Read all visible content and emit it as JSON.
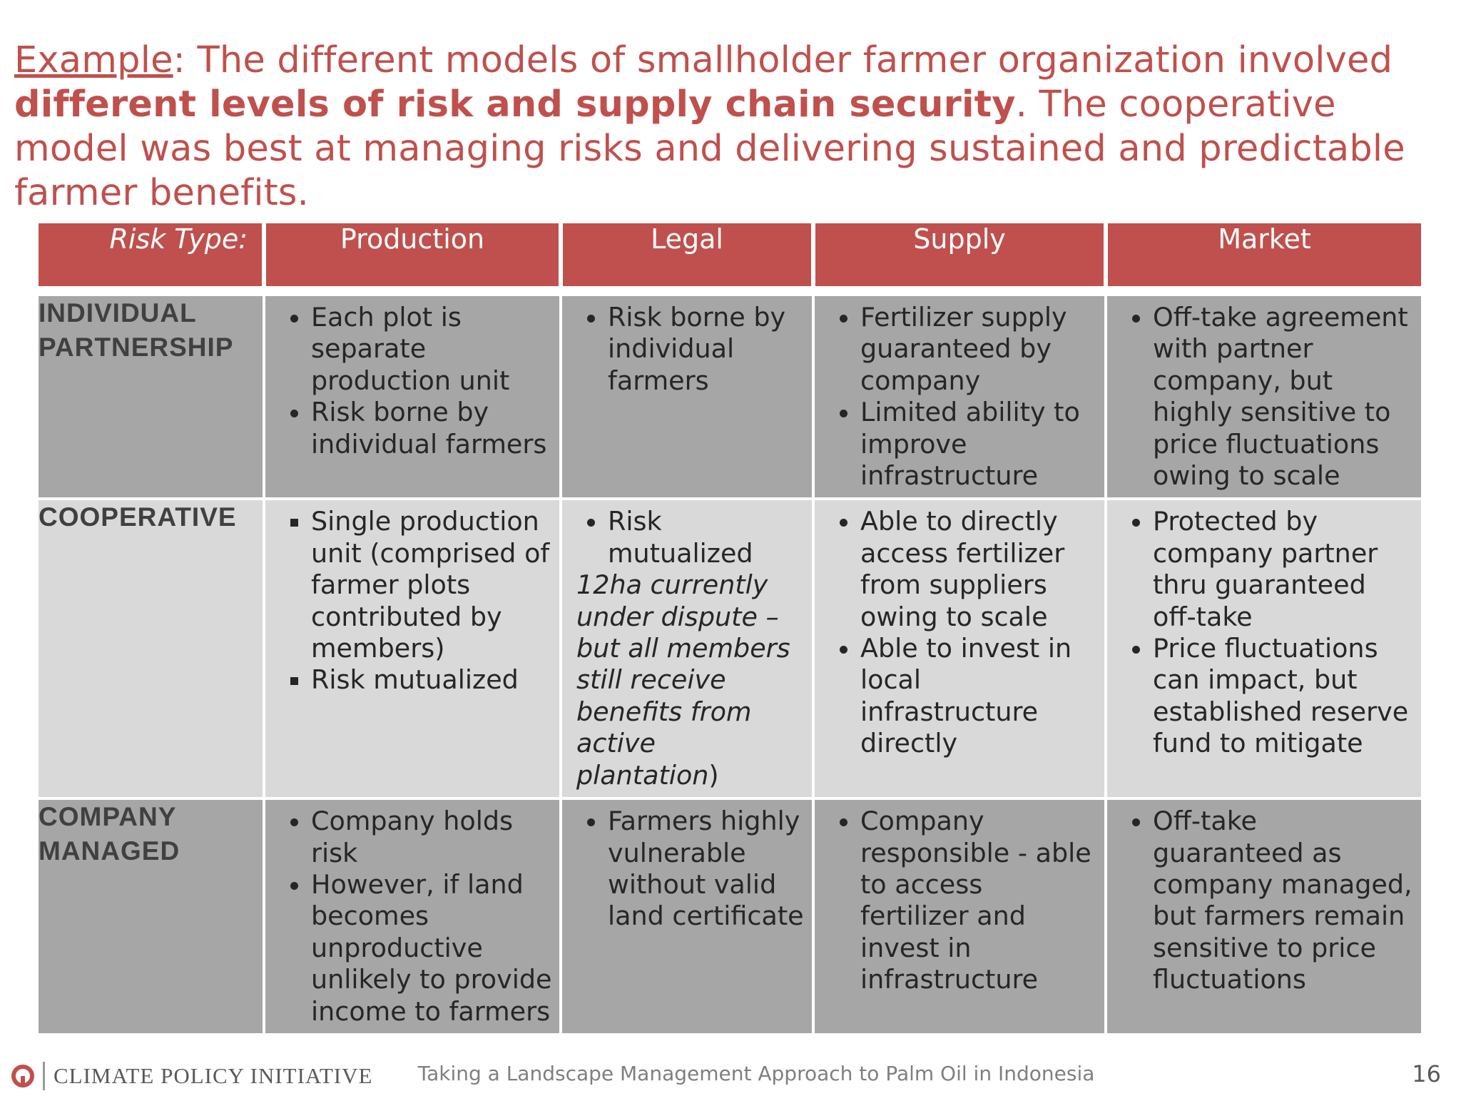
{
  "title": {
    "example": "Example",
    "part1": ": The different models of smallholder farmer organization involved ",
    "bold": "different levels of risk and supply chain security",
    "part2": ". The cooperative model was best at managing risks and delivering sustained and predictable farmer benefits."
  },
  "table": {
    "header": {
      "label": "Risk Type:",
      "columns": [
        "Production",
        "Legal",
        "Supply",
        "Market"
      ]
    },
    "rows": [
      {
        "model": "INDIVIDUAL PARTNERSHIP",
        "production": [
          "Each plot is separate production unit",
          "Risk borne by individual farmers"
        ],
        "legal": [
          "Risk borne by individual farmers"
        ],
        "supply": [
          "Fertilizer supply guaranteed by company",
          "Limited ability to improve infrastructure"
        ],
        "market": [
          "Off-take agreement with partner company, but highly sensitive to price fluctuations owing to scale"
        ]
      },
      {
        "model": "COOPERATIVE",
        "production": [
          "Single production unit (comprised of farmer plots contributed by members)",
          "Risk mutualized"
        ],
        "legal_bullet": "Risk mutualized",
        "legal_italic": "12ha currently under dispute – but all members still receive benefits from active plantation",
        "legal_close": ")",
        "supply": [
          "Able to directly access fertilizer from suppliers owing to scale",
          "Able to invest in local infrastructure directly"
        ],
        "market": [
          "Protected by company partner thru guaranteed off-take",
          "Price fluctuations can impact, but established reserve fund to mitigate"
        ]
      },
      {
        "model": "COMPANY MANAGED",
        "production": [
          "Company holds risk",
          "However, if land becomes unproductive unlikely to provide income to farmers"
        ],
        "legal": [
          "Farmers highly vulnerable without valid land certificate"
        ],
        "supply": [
          "Company responsible - able to access fertilizer and invest in infrastructure"
        ],
        "market": [
          "Off-take guaranteed as company managed, but farmers remain sensitive to price fluctuations"
        ]
      }
    ]
  },
  "footer": {
    "org": "CLIMATE POLICY INITIATIVE",
    "subtitle": "Taking a Landscape Management Approach to Palm Oil in Indonesia",
    "page": "16"
  },
  "colors": {
    "accent": "#c0504d",
    "row_dark": "#a6a6a6",
    "row_light": "#d9d9d9"
  }
}
